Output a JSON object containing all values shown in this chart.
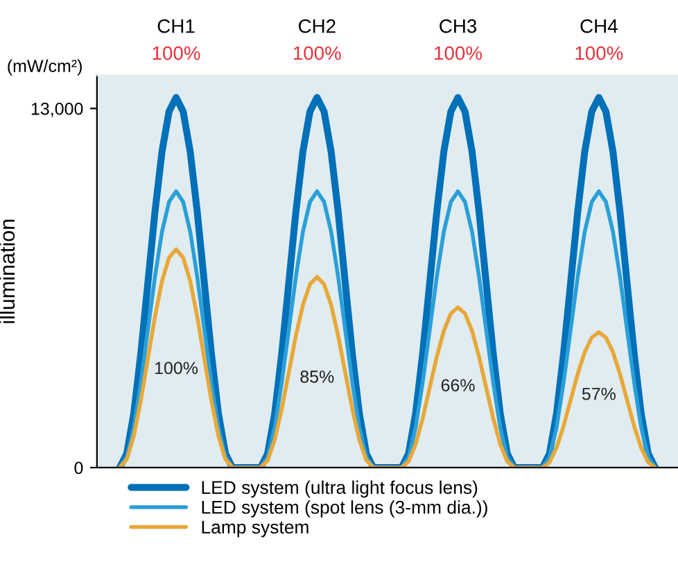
{
  "chart_data": {
    "type": "line",
    "subtitle": "(mW/cm²)",
    "ylabel": "illumination",
    "categories": [
      null,
      null,
      null,
      null,
      null,
      null,
      null,
      null,
      "CH1",
      null,
      null,
      null,
      null,
      null,
      null,
      null,
      null,
      null,
      null,
      null,
      null,
      null,
      null,
      null,
      null,
      null,
      null,
      null,
      "CH2",
      null,
      null,
      null,
      null,
      null,
      null,
      null,
      null,
      null,
      null,
      null,
      null,
      null,
      null,
      null,
      null,
      null,
      null,
      null,
      "CH3",
      null,
      null,
      null,
      null,
      null,
      null,
      null,
      null,
      null,
      null,
      null,
      null,
      null,
      null,
      null,
      null,
      null,
      null,
      null,
      "CH4",
      null,
      null,
      null,
      null,
      null,
      null,
      null,
      null
    ],
    "series": [
      {
        "name": "LED system (ultra light focus lens)",
        "color": "#0070b8",
        "values": [
          0,
          510,
          1960,
          4140,
          6700,
          9260,
          11440,
          12890,
          13400,
          12890,
          11440,
          9260,
          6700,
          4140,
          1960,
          510,
          0,
          0,
          0,
          0,
          0,
          510,
          1960,
          4140,
          6700,
          9260,
          11440,
          12890,
          13400,
          12890,
          11440,
          9260,
          6700,
          4140,
          1960,
          510,
          0,
          0,
          0,
          0,
          0,
          510,
          1960,
          4140,
          6700,
          9260,
          11440,
          12890,
          13400,
          12890,
          11440,
          9260,
          6700,
          4140,
          1960,
          510,
          0,
          0,
          0,
          0,
          0,
          510,
          1960,
          4140,
          6700,
          9260,
          11440,
          12890,
          13400,
          12890,
          11440,
          9260,
          6700,
          4140,
          1960,
          510,
          0
        ]
      },
      {
        "name": "LED system (spot lens (3-mm dia.))",
        "color": "#2a9fd8",
        "values": [
          0,
          380,
          1460,
          3090,
          5000,
          6910,
          8540,
          9620,
          10000,
          9620,
          8540,
          6910,
          5000,
          3090,
          1460,
          380,
          0,
          0,
          0,
          0,
          0,
          380,
          1460,
          3090,
          5000,
          6910,
          8540,
          9620,
          10000,
          9620,
          8540,
          6910,
          5000,
          3090,
          1460,
          380,
          0,
          0,
          0,
          0,
          0,
          380,
          1460,
          3090,
          5000,
          6910,
          8540,
          9620,
          10000,
          9620,
          8540,
          6910,
          5000,
          3090,
          1460,
          380,
          0,
          0,
          0,
          0,
          0,
          380,
          1460,
          3090,
          5000,
          6910,
          8540,
          9620,
          10000,
          9620,
          8540,
          6910,
          5000,
          3090,
          1460,
          380,
          0
        ]
      },
      {
        "name": "Lamp system",
        "color": "#e8a838",
        "values": [
          0,
          300,
          1150,
          2440,
          3950,
          5460,
          6750,
          7600,
          7900,
          7600,
          6750,
          5460,
          3950,
          2440,
          1150,
          300,
          0,
          0,
          0,
          0,
          0,
          260,
          1010,
          2130,
          3450,
          4770,
          5890,
          6640,
          6900,
          6640,
          5890,
          4770,
          3450,
          2130,
          1010,
          260,
          0,
          0,
          0,
          0,
          0,
          220,
          850,
          1790,
          2900,
          4010,
          4950,
          5580,
          5800,
          5580,
          4950,
          4010,
          2900,
          1790,
          850,
          220,
          0,
          0,
          0,
          0,
          0,
          190,
          720,
          1510,
          2450,
          3390,
          4180,
          4710,
          4900,
          4710,
          4180,
          3390,
          2450,
          1510,
          720,
          190,
          0
        ]
      }
    ],
    "ylim": [
      0,
      14200
    ],
    "yticks": [
      0,
      {
        "value": 13000,
        "label": "13,000"
      }
    ],
    "annotations": [
      "100%",
      "100%",
      "100%",
      "100%",
      "100%",
      "85%",
      "66%",
      "57%"
    ],
    "legend": "bottom",
    "grid": false
  }
}
